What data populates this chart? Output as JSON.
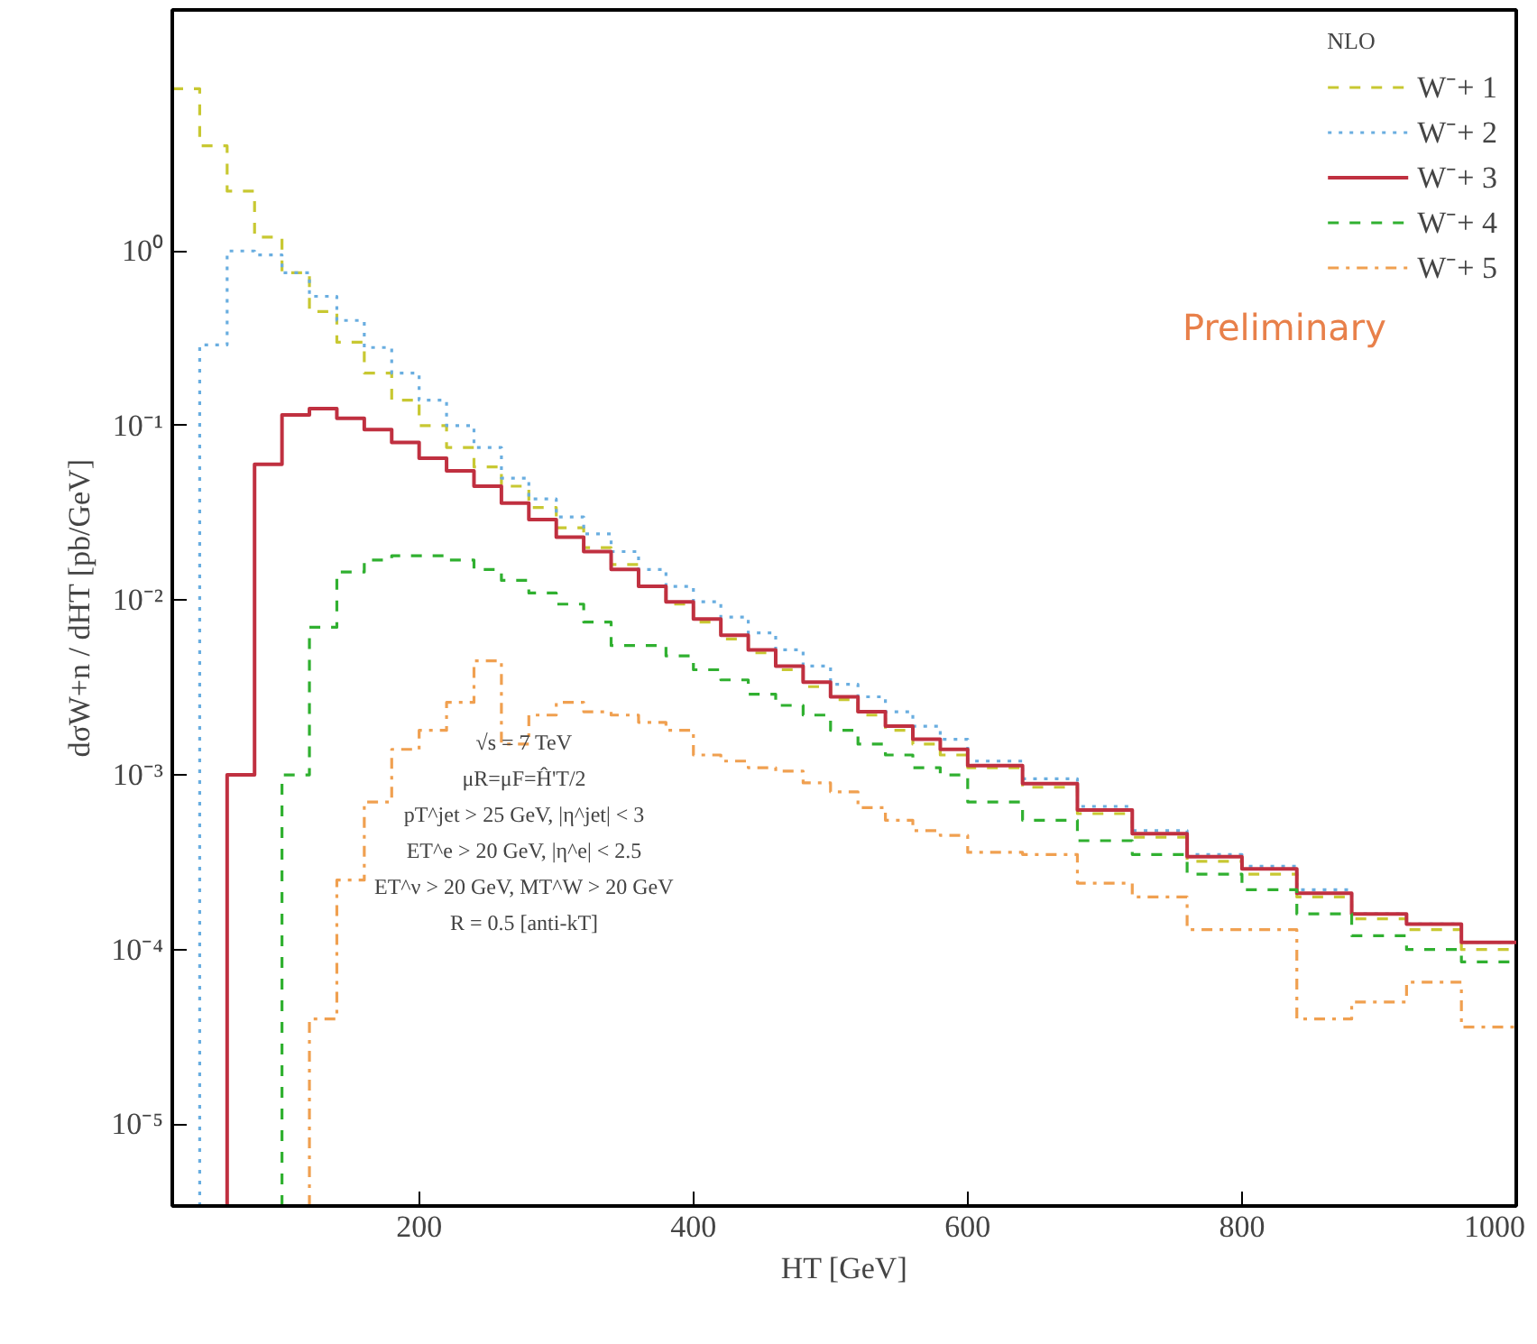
{
  "chart_data": {
    "type": "histogram",
    "xlabel": "HT [GeV]",
    "ylabel": "dσW+n / dHT [pb/GeV]",
    "legend_title": "NLO",
    "bins": [
      20,
      40,
      60,
      80,
      100,
      120,
      140,
      160,
      180,
      200,
      220,
      240,
      260,
      280,
      300,
      320,
      340,
      360,
      380,
      400,
      420,
      440,
      460,
      480,
      500,
      520,
      540,
      560,
      580,
      600,
      640,
      680,
      720,
      760,
      800,
      840,
      880,
      920,
      960,
      1000
    ],
    "series": [
      {
        "name": "W⁻+ 1",
        "color": "#c8c832",
        "line_style": "dashed",
        "values": [
          8.5,
          4.0,
          2.2,
          1.2,
          0.75,
          0.45,
          0.3,
          0.2,
          0.14,
          0.1,
          0.075,
          0.058,
          0.045,
          0.034,
          0.026,
          0.02,
          0.016,
          0.012,
          0.0095,
          0.0075,
          0.006,
          0.005,
          0.004,
          0.0032,
          0.0027,
          0.0022,
          0.0018,
          0.0015,
          0.0013,
          0.0011,
          0.00085,
          0.0006,
          0.00044,
          0.00032,
          0.00027,
          0.0002,
          0.00015,
          0.00013,
          0.0001
        ]
      },
      {
        "name": "W⁻+ 2",
        "color": "#6aaee0",
        "line_style": "dotted",
        "bins": [
          40,
          60,
          80,
          100,
          120,
          140,
          160,
          180,
          200,
          220,
          240,
          260,
          280,
          300,
          320,
          340,
          360,
          380,
          400,
          420,
          440,
          460,
          480,
          500,
          520,
          540,
          560,
          580,
          600,
          640,
          680,
          720,
          760,
          800,
          840,
          880,
          920,
          960,
          1000
        ],
        "values": [
          0.29,
          1.0,
          0.95,
          0.75,
          0.55,
          0.4,
          0.28,
          0.2,
          0.14,
          0.1,
          0.075,
          0.05,
          0.038,
          0.03,
          0.024,
          0.019,
          0.015,
          0.012,
          0.0098,
          0.008,
          0.0065,
          0.0052,
          0.0042,
          0.0033,
          0.0028,
          0.0023,
          0.0019,
          0.0016,
          0.0012,
          0.00095,
          0.00066,
          0.00048,
          0.00035,
          0.0003,
          0.00022,
          0.00016,
          0.00014,
          0.00011
        ]
      },
      {
        "name": "W⁻+ 3",
        "color": "#c03040",
        "line_style": "solid",
        "bins": [
          60,
          80,
          100,
          120,
          140,
          160,
          180,
          200,
          220,
          240,
          260,
          280,
          300,
          320,
          340,
          360,
          380,
          400,
          420,
          440,
          460,
          480,
          500,
          520,
          540,
          560,
          580,
          600,
          640,
          680,
          720,
          760,
          800,
          840,
          880,
          920,
          960,
          1000
        ],
        "values": [
          0.001,
          0.06,
          0.115,
          0.125,
          0.11,
          0.095,
          0.08,
          0.065,
          0.055,
          0.045,
          0.036,
          0.029,
          0.023,
          0.019,
          0.015,
          0.012,
          0.0098,
          0.0078,
          0.0063,
          0.0052,
          0.0042,
          0.0034,
          0.0028,
          0.0023,
          0.0019,
          0.0016,
          0.0014,
          0.00113,
          0.00089,
          0.00063,
          0.00046,
          0.00034,
          0.00029,
          0.00021,
          0.00016,
          0.00014,
          0.00011
        ]
      },
      {
        "name": "W⁻+ 4",
        "color": "#30b030",
        "line_style": "dashed",
        "bins": [
          100,
          120,
          140,
          160,
          180,
          200,
          220,
          240,
          260,
          280,
          300,
          320,
          340,
          360,
          380,
          400,
          420,
          440,
          460,
          480,
          500,
          520,
          540,
          560,
          580,
          600,
          640,
          680,
          720,
          760,
          800,
          840,
          880,
          920,
          960,
          1000
        ],
        "values": [
          0.001,
          0.007,
          0.0145,
          0.017,
          0.018,
          0.018,
          0.017,
          0.015,
          0.013,
          0.011,
          0.0095,
          0.0075,
          0.0055,
          0.0055,
          0.0048,
          0.004,
          0.0035,
          0.0029,
          0.0025,
          0.0022,
          0.0018,
          0.0015,
          0.0013,
          0.0011,
          0.001,
          0.0007,
          0.00055,
          0.00042,
          0.00035,
          0.00027,
          0.00022,
          0.00016,
          0.00012,
          0.0001,
          8.5e-05
        ]
      },
      {
        "name": "W⁻+ 5",
        "color": "#f0a050",
        "line_style": "dashdot",
        "bins": [
          120,
          140,
          160,
          180,
          200,
          220,
          240,
          260,
          280,
          300,
          320,
          340,
          360,
          380,
          400,
          420,
          440,
          460,
          480,
          500,
          520,
          540,
          560,
          580,
          600,
          640,
          680,
          720,
          760,
          800,
          840,
          880,
          920,
          960,
          1000
        ],
        "values": [
          4e-05,
          0.00025,
          0.0007,
          0.0014,
          0.0018,
          0.0026,
          0.0045,
          0.0015,
          0.0022,
          0.0026,
          0.0023,
          0.0022,
          0.002,
          0.0018,
          0.0013,
          0.0012,
          0.0011,
          0.00105,
          0.0009,
          0.0008,
          0.00065,
          0.00055,
          0.00048,
          0.00045,
          0.00036,
          0.00035,
          0.00024,
          0.0002,
          0.00013,
          0.00013,
          4e-05,
          5e-05,
          6.5e-05,
          3.6e-05
        ]
      }
    ],
    "xlim": [
      20,
      1000
    ],
    "ylim": [
      3.4e-06,
      24
    ],
    "xticks": [
      200,
      400,
      600,
      800,
      1000
    ],
    "yticks": [
      {
        "value": 1,
        "label": "10⁰"
      },
      {
        "value": 0.1,
        "label": "10⁻¹"
      },
      {
        "value": 0.01,
        "label": "10⁻²"
      },
      {
        "value": 0.001,
        "label": "10⁻³"
      },
      {
        "value": 0.0001,
        "label": "10⁻⁴"
      },
      {
        "value": 1e-05,
        "label": "10⁻⁵"
      }
    ],
    "log": "y",
    "grid": false,
    "legend": "top right",
    "annotations": [
      "Preliminary",
      "√s = 7 TeV",
      "μR=μF=Ĥ'T/2",
      "pT^jet > 25 GeV, |η^jet| < 3",
      "ET^e > 20 GeV, |η^e| < 2.5",
      "ET^ν > 20 GeV, MT^W > 20 GeV",
      "R = 0.5 [anti-kT]"
    ]
  }
}
